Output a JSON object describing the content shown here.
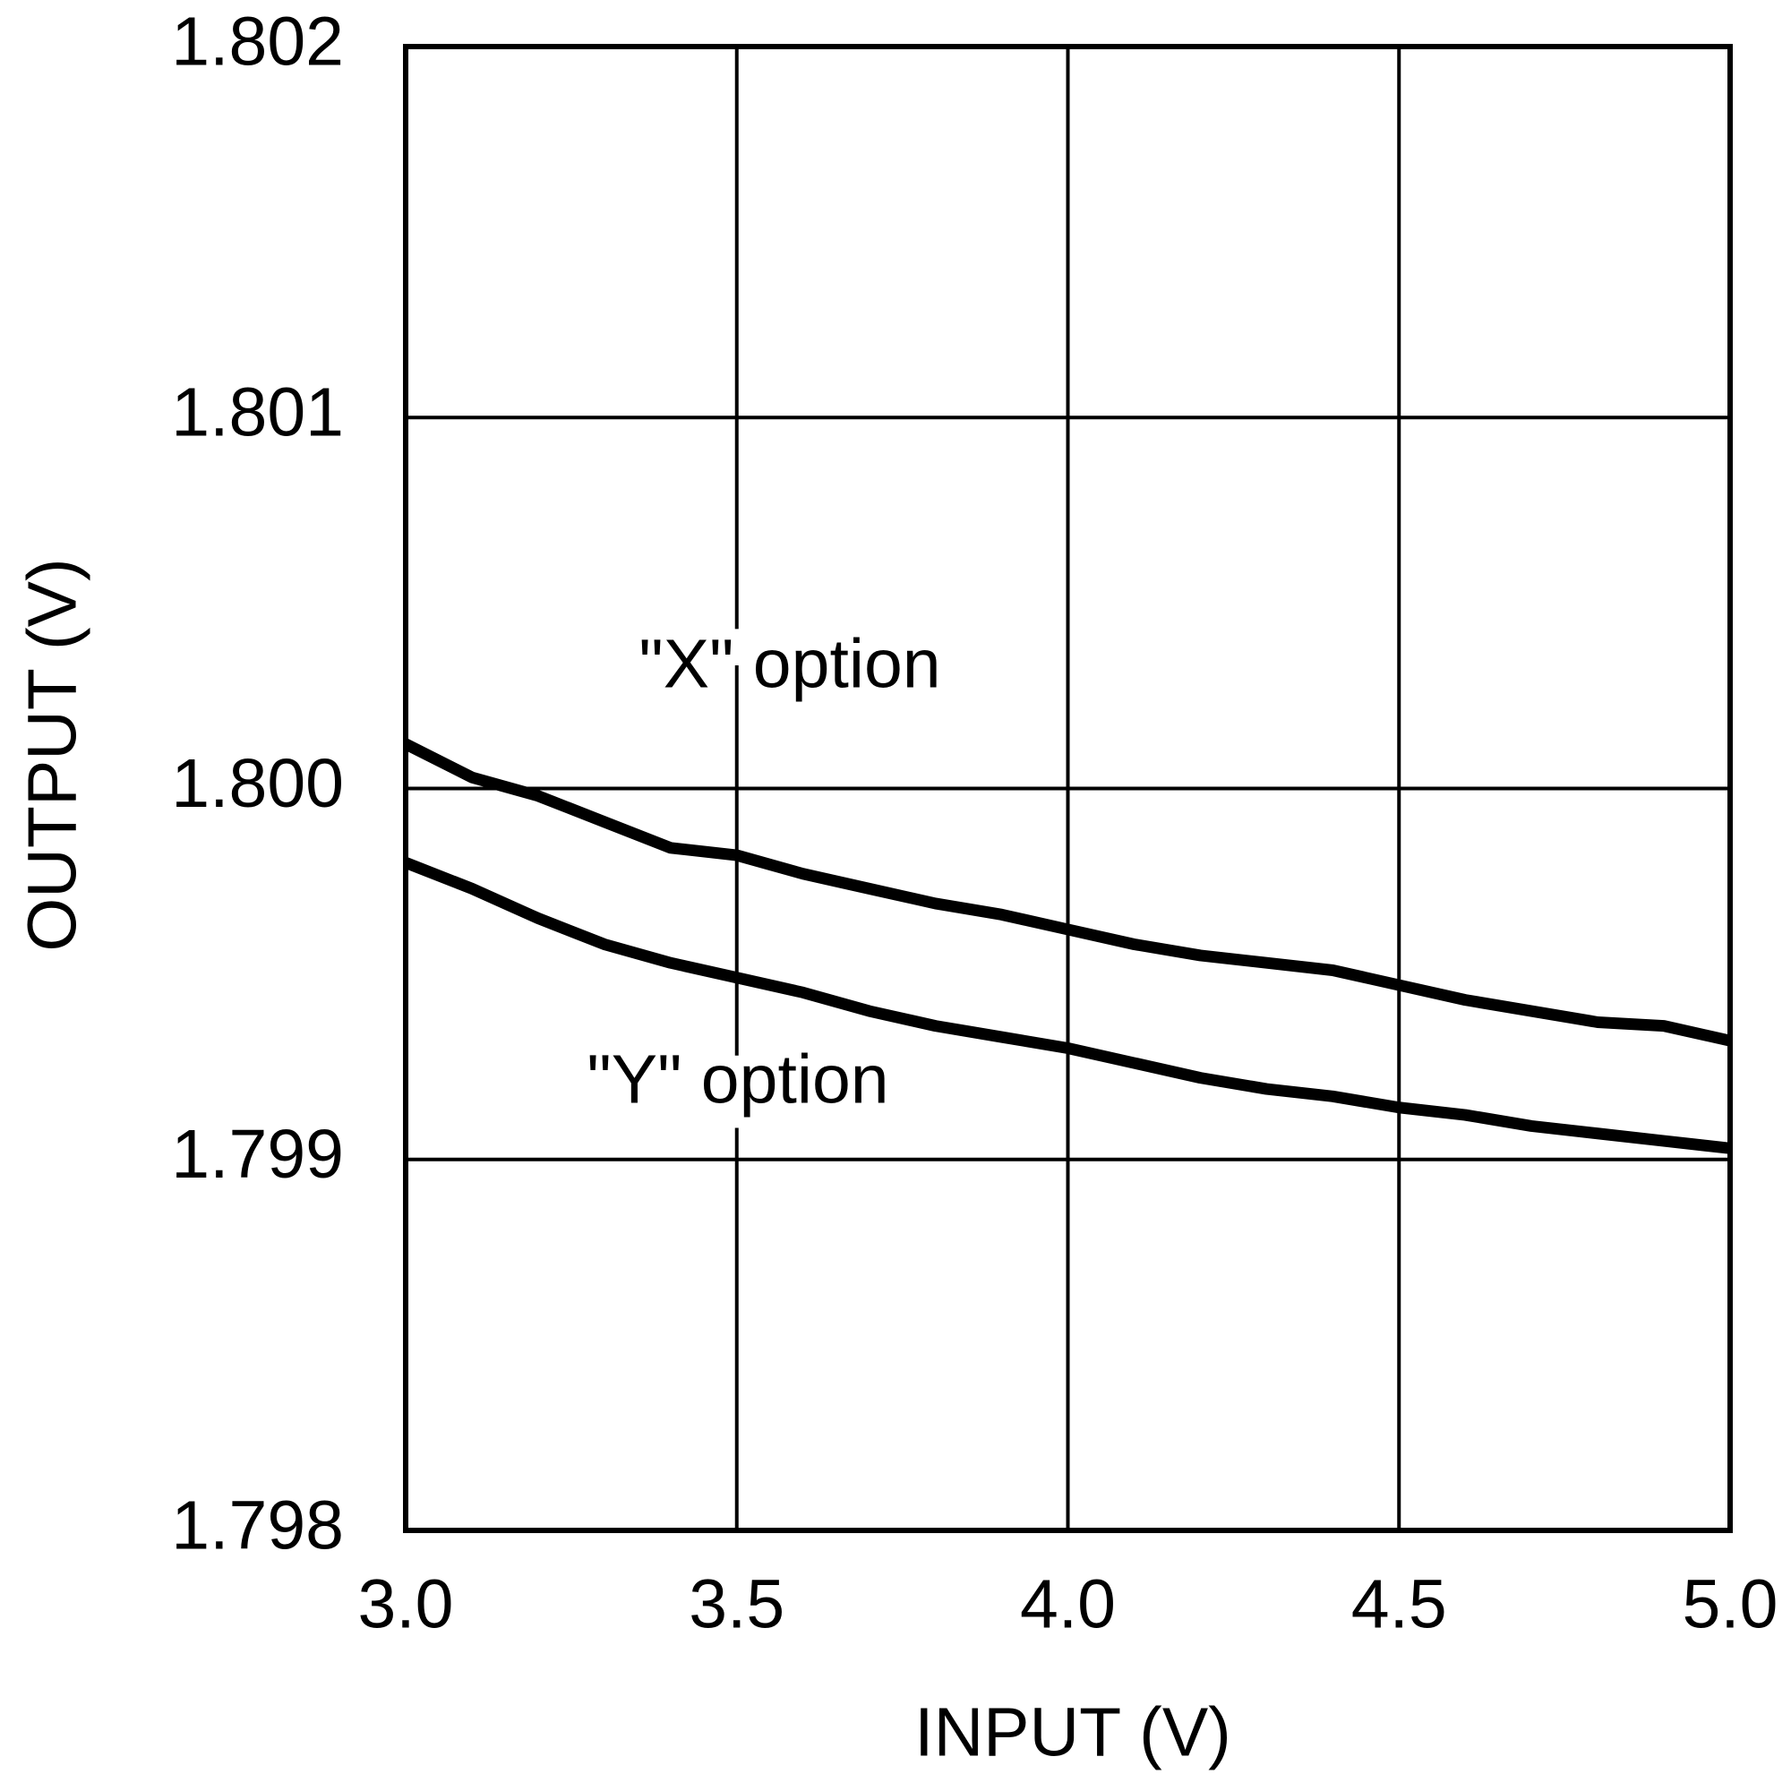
{
  "chart_data": {
    "type": "line",
    "xlabel": "INPUT (V)",
    "ylabel": "OUTPUT (V)",
    "x": [
      3.0,
      3.1,
      3.2,
      3.3,
      3.4,
      3.5,
      3.6,
      3.7,
      3.8,
      3.9,
      4.0,
      4.1,
      4.2,
      4.3,
      4.4,
      4.5,
      4.6,
      4.7,
      4.8,
      4.9,
      5.0
    ],
    "series": [
      {
        "name": "\"X\" option",
        "color": "#000000",
        "values": [
          1.80012,
          1.80003,
          1.79998,
          1.79991,
          1.79984,
          1.79982,
          1.79977,
          1.79973,
          1.79969,
          1.79966,
          1.79962,
          1.79958,
          1.79955,
          1.79953,
          1.79951,
          1.79947,
          1.79943,
          1.7994,
          1.79937,
          1.79936,
          1.79932
        ]
      },
      {
        "name": "\"Y\" option",
        "color": "#000000",
        "values": [
          1.7998,
          1.79973,
          1.79965,
          1.79958,
          1.79953,
          1.79949,
          1.79945,
          1.7994,
          1.79936,
          1.79933,
          1.7993,
          1.79926,
          1.79922,
          1.79919,
          1.79917,
          1.79914,
          1.79912,
          1.79909,
          1.79907,
          1.79905,
          1.79903
        ]
      }
    ],
    "xlim": [
      3,
      5
    ],
    "xticks": [
      {
        "value": 3,
        "label": "3.0"
      },
      3.5,
      {
        "value": 4,
        "label": "4.0"
      },
      4.5,
      {
        "value": 5,
        "label": "5.0"
      }
    ],
    "ylim": [
      1.798,
      1.802
    ],
    "yticks": [
      1.798,
      1.799,
      {
        "value": 1.8,
        "label": "1.800"
      },
      1.801,
      1.802
    ],
    "grid": true
  }
}
